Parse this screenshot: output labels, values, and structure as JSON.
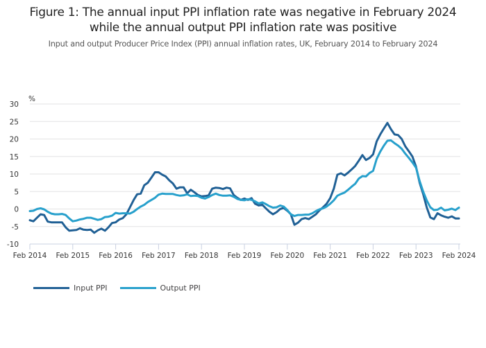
{
  "chart_data": {
    "type": "line",
    "title": "Figure 1: The annual input PPI inflation rate was negative in February 2024 while the annual output PPI inflation rate was positive",
    "title_lines": [
      "Figure 1: The annual input PPI inflation rate was negative in February 2024",
      "while the annual output PPI inflation rate was positive"
    ],
    "subtitle": "Input and output Producer Price Index (PPI) annual inflation rates, UK, February 2014 to February 2024",
    "ylabel": "%",
    "xlabel": "",
    "ylim": [
      -10,
      30
    ],
    "yticks": [
      30,
      25,
      20,
      15,
      10,
      5,
      0,
      -5,
      -10
    ],
    "xtick_labels": [
      "Feb 2014",
      "Feb 2015",
      "Feb 2016",
      "Feb 2017",
      "Feb 2018",
      "Feb 2019",
      "Feb 2020",
      "Feb 2021",
      "Feb 2022",
      "Feb 2023",
      "Feb 2024"
    ],
    "x_start": "Feb 2014",
    "x_end": "Feb 2024",
    "frequency": "monthly",
    "grid": true,
    "legend_position": "bottom-left",
    "series": [
      {
        "name": "Input PPI",
        "color": "#206095",
        "values": [
          -3.2,
          -3.5,
          -2.5,
          -1.5,
          -1.7,
          -3.6,
          -3.8,
          -3.8,
          -3.8,
          -3.8,
          -5.2,
          -6.2,
          -6.1,
          -6.0,
          -5.5,
          -5.9,
          -6.0,
          -5.9,
          -6.8,
          -6.1,
          -5.6,
          -6.2,
          -5.2,
          -4.0,
          -3.8,
          -3.0,
          -2.6,
          -1.5,
          0.5,
          2.5,
          4.2,
          4.4,
          6.8,
          7.5,
          9.0,
          10.5,
          10.5,
          9.8,
          9.3,
          8.2,
          7.3,
          5.8,
          6.2,
          6.2,
          4.5,
          5.5,
          4.8,
          4.0,
          3.6,
          3.7,
          3.9,
          5.8,
          6.1,
          6.0,
          5.7,
          6.1,
          5.9,
          4.0,
          3.2,
          2.6,
          3.0,
          2.6,
          3.1,
          1.5,
          1.0,
          1.2,
          0.2,
          -0.8,
          -1.5,
          -0.9,
          0.0,
          0.3,
          -0.5,
          -1.5,
          -4.5,
          -3.9,
          -2.9,
          -2.6,
          -2.9,
          -2.2,
          -1.5,
          -0.4,
          0.5,
          1.5,
          3.1,
          5.8,
          9.8,
          10.2,
          9.6,
          10.4,
          11.3,
          12.3,
          13.8,
          15.4,
          14.0,
          14.6,
          15.6,
          19.3,
          21.3,
          23.0,
          24.6,
          22.8,
          21.3,
          21.1,
          20.0,
          17.9,
          16.5,
          15.0,
          12.1,
          7.5,
          4.3,
          0.5,
          -2.4,
          -2.9,
          -1.2,
          -1.8,
          -2.2,
          -2.5,
          -2.1,
          -2.7,
          -2.7
        ]
      },
      {
        "name": "Output PPI",
        "color": "#27a0cc",
        "values": [
          -0.6,
          -0.5,
          0.0,
          0.2,
          -0.1,
          -0.8,
          -1.3,
          -1.5,
          -1.5,
          -1.4,
          -1.7,
          -2.7,
          -3.5,
          -3.3,
          -3.0,
          -2.8,
          -2.5,
          -2.5,
          -2.8,
          -3.1,
          -2.9,
          -2.3,
          -2.2,
          -1.9,
          -1.1,
          -1.3,
          -1.2,
          -1.2,
          -1.3,
          -0.8,
          0.0,
          0.7,
          1.2,
          2.0,
          2.6,
          3.2,
          4.1,
          4.4,
          4.3,
          4.3,
          4.3,
          4.0,
          3.8,
          3.9,
          4.2,
          3.7,
          3.8,
          3.7,
          3.2,
          3.0,
          3.4,
          4.0,
          4.4,
          4.0,
          3.8,
          3.8,
          3.9,
          3.5,
          2.9,
          2.6,
          2.5,
          2.8,
          2.6,
          2.2,
          1.6,
          1.9,
          1.4,
          0.8,
          0.4,
          0.5,
          1.0,
          0.7,
          -0.3,
          -1.5,
          -2.0,
          -1.7,
          -1.7,
          -1.6,
          -1.6,
          -1.2,
          -0.6,
          -0.1,
          0.2,
          0.7,
          1.5,
          2.5,
          3.8,
          4.3,
          4.7,
          5.5,
          6.4,
          7.2,
          8.7,
          9.4,
          9.3,
          10.3,
          10.9,
          14.3,
          16.4,
          18.1,
          19.5,
          19.6,
          18.8,
          18.1,
          17.2,
          15.8,
          14.6,
          13.3,
          11.8,
          8.0,
          5.0,
          2.5,
          0.5,
          -0.3,
          -0.2,
          0.4,
          -0.4,
          -0.2,
          0.1,
          -0.3,
          0.4
        ]
      }
    ]
  }
}
